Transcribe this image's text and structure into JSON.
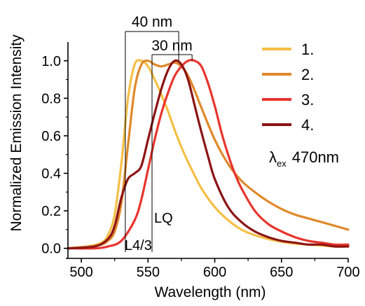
{
  "chart_data": {
    "type": "line",
    "xlabel": "Wavelength (nm)",
    "ylabel": "Normalized Emission Intensity",
    "xlim": [
      490,
      700
    ],
    "ylim": [
      -0.02,
      1.1
    ],
    "x_ticks": [
      500,
      550,
      600,
      650,
      700
    ],
    "y_ticks": [
      "0.0",
      "0.2",
      "0.4",
      "0.6",
      "0.8",
      "1.0"
    ],
    "grid": false,
    "legend_position": "top-right",
    "series": [
      {
        "name": "1.",
        "color": "#F5BF45",
        "x": [
          490,
          505,
          515,
          520,
          525,
          530,
          535,
          540,
          545,
          550,
          555,
          560,
          565,
          570,
          575,
          580,
          590,
          600,
          610,
          620,
          630,
          640,
          650,
          660,
          670,
          680,
          690,
          700
        ],
        "y": [
          0.0,
          0.01,
          0.03,
          0.07,
          0.18,
          0.45,
          0.8,
          0.98,
          1.0,
          0.97,
          0.9,
          0.82,
          0.73,
          0.63,
          0.54,
          0.46,
          0.32,
          0.22,
          0.15,
          0.1,
          0.07,
          0.05,
          0.035,
          0.025,
          0.02,
          0.015,
          0.01,
          0.01
        ]
      },
      {
        "name": "2.",
        "color": "#E0882A",
        "x": [
          490,
          505,
          515,
          520,
          525,
          530,
          535,
          540,
          545,
          550,
          555,
          560,
          565,
          570,
          575,
          580,
          585,
          590,
          600,
          610,
          620,
          630,
          640,
          650,
          660,
          670,
          680,
          690,
          700
        ],
        "y": [
          0.0,
          0.01,
          0.02,
          0.04,
          0.09,
          0.24,
          0.55,
          0.85,
          0.98,
          1.0,
          0.98,
          0.97,
          0.98,
          0.99,
          0.97,
          0.92,
          0.84,
          0.75,
          0.58,
          0.45,
          0.36,
          0.3,
          0.25,
          0.21,
          0.18,
          0.16,
          0.14,
          0.12,
          0.1
        ]
      },
      {
        "name": "3.",
        "color": "#E8352E",
        "x": [
          490,
          510,
          520,
          530,
          540,
          545,
          550,
          555,
          560,
          565,
          570,
          575,
          580,
          585,
          590,
          595,
          600,
          605,
          610,
          615,
          620,
          630,
          640,
          650,
          660,
          670,
          680,
          690,
          700
        ],
        "y": [
          0.0,
          0.0,
          0.01,
          0.04,
          0.15,
          0.26,
          0.42,
          0.58,
          0.72,
          0.83,
          0.92,
          0.97,
          1.0,
          1.0,
          0.97,
          0.88,
          0.76,
          0.62,
          0.5,
          0.4,
          0.32,
          0.2,
          0.13,
          0.09,
          0.06,
          0.04,
          0.03,
          0.02,
          0.02
        ]
      },
      {
        "name": "4.",
        "color": "#8C1414",
        "x": [
          490,
          510,
          520,
          525,
          530,
          535,
          540,
          545,
          550,
          555,
          560,
          565,
          570,
          575,
          580,
          585,
          590,
          595,
          600,
          610,
          620,
          630,
          640,
          650,
          660,
          670,
          680,
          690,
          700
        ],
        "y": [
          0.0,
          0.01,
          0.05,
          0.12,
          0.27,
          0.37,
          0.4,
          0.44,
          0.58,
          0.72,
          0.85,
          0.95,
          1.0,
          0.98,
          0.9,
          0.76,
          0.62,
          0.49,
          0.37,
          0.22,
          0.14,
          0.09,
          0.06,
          0.04,
          0.03,
          0.02,
          0.02,
          0.01,
          0.01
        ]
      }
    ],
    "annotations": {
      "excitation_label": "λ",
      "excitation_sub": "ex",
      "excitation_value": "470nm",
      "span_40nm": {
        "label": "40 nm",
        "from": 533,
        "to": 573
      },
      "span_30nm": {
        "label": "30 nm",
        "from": 553,
        "to": 583
      },
      "line_L43": {
        "label": "L4/3",
        "x": 533
      },
      "line_LQ": {
        "label": "LQ",
        "x": 553
      }
    }
  }
}
